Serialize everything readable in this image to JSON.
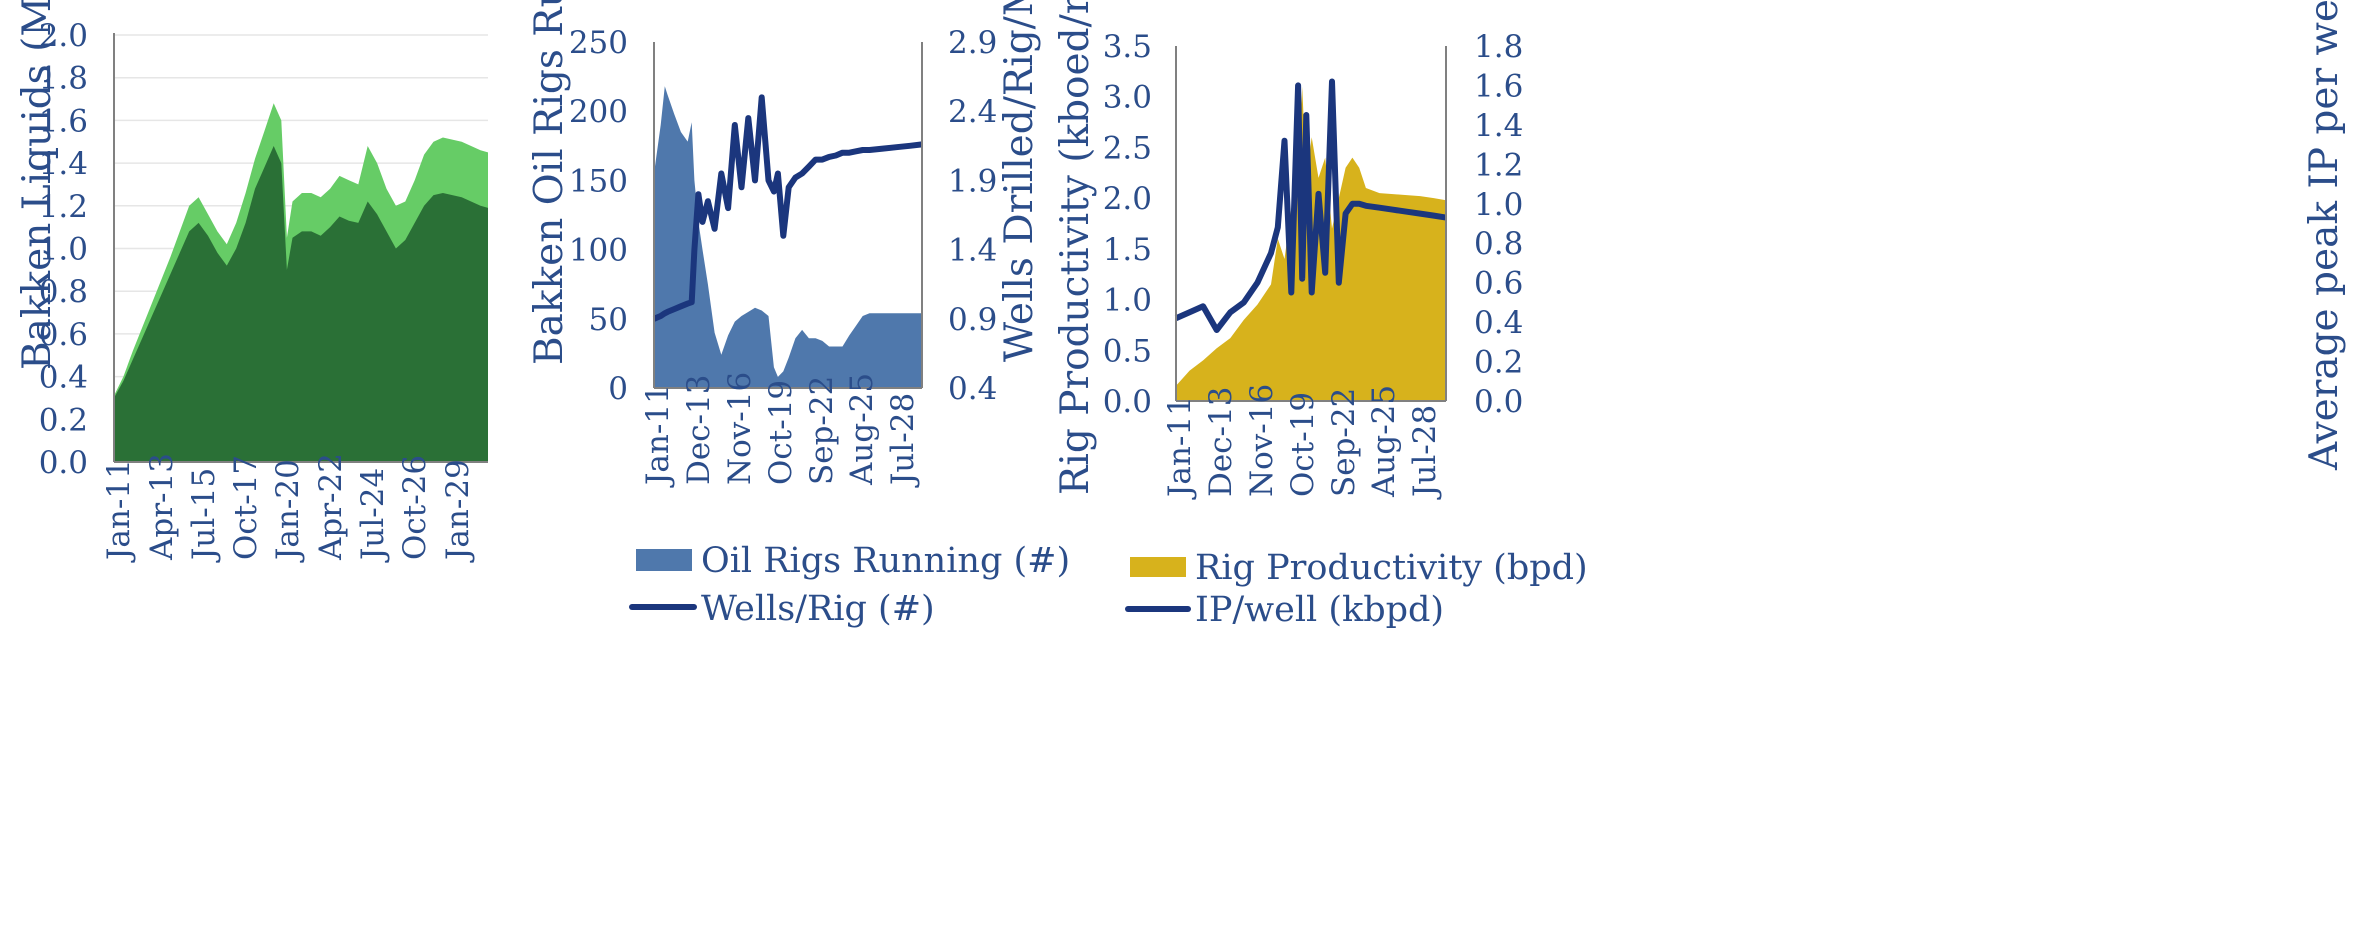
{
  "chart_data": [
    {
      "type": "area",
      "xlabel": "",
      "ylabel": "Bakken Liquids  (Mbpd)",
      "ylim": [
        0,
        2.0
      ],
      "y_ticks": [
        "0.0",
        "0.2",
        "0.4",
        "0.6",
        "0.8",
        "1.0",
        "1.2",
        "1.4",
        "1.6",
        "1.8",
        "2.0"
      ],
      "x_ticks": [
        "Jan-11",
        "Apr-13",
        "Jul-15",
        "Oct-17",
        "Jan-20",
        "Apr-22",
        "Jul-24",
        "Oct-26",
        "Jan-29"
      ],
      "grid": true,
      "colors": {
        "lower": "#2a7036",
        "upper": "#66cc66"
      },
      "x": [
        "2011.0",
        "2011.5",
        "2012.0",
        "2012.5",
        "2013.0",
        "2013.5",
        "2014.0",
        "2014.5",
        "2015.0",
        "2015.5",
        "2016.0",
        "2016.5",
        "2017.0",
        "2017.5",
        "2018.0",
        "2018.5",
        "2019.0",
        "2019.5",
        "2019.9",
        "2020.2",
        "2020.5",
        "2021.0",
        "2021.5",
        "2022.0",
        "2022.5",
        "2023.0",
        "2023.5",
        "2024.0",
        "2024.5",
        "2025.0",
        "2025.5",
        "2026.0",
        "2026.5",
        "2027.0",
        "2027.5",
        "2028.0",
        "2028.5",
        "2029.0",
        "2029.5",
        "2030.0",
        "2030.5",
        "2030.9"
      ],
      "series": [
        {
          "values": [
            0.3,
            0.38,
            0.48,
            0.58,
            0.68,
            0.78,
            0.88,
            0.98,
            1.08,
            1.12,
            1.06,
            0.98,
            0.92,
            1.0,
            1.12,
            1.28,
            1.38,
            1.48,
            1.4,
            0.9,
            1.05,
            1.08,
            1.08,
            1.06,
            1.1,
            1.15,
            1.13,
            1.12,
            1.22,
            1.16,
            1.08,
            1.0,
            1.04,
            1.12,
            1.2,
            1.25,
            1.26,
            1.25,
            1.24,
            1.22,
            1.2,
            1.19
          ]
        },
        {
          "values": [
            0.31,
            0.4,
            0.52,
            0.63,
            0.74,
            0.85,
            0.96,
            1.08,
            1.2,
            1.24,
            1.16,
            1.08,
            1.02,
            1.12,
            1.26,
            1.42,
            1.55,
            1.68,
            1.6,
            1.05,
            1.22,
            1.26,
            1.26,
            1.24,
            1.28,
            1.34,
            1.32,
            1.3,
            1.48,
            1.4,
            1.28,
            1.2,
            1.22,
            1.32,
            1.44,
            1.5,
            1.52,
            1.51,
            1.5,
            1.48,
            1.46,
            1.45
          ]
        }
      ]
    },
    {
      "type": "area",
      "xlabel": "",
      "ylabel": "Bakken Oil Rigs Running",
      "y2label": "Wells Drilled/Rig/Month",
      "ylim": [
        0,
        250
      ],
      "y2lim": [
        0.4,
        2.9
      ],
      "y_ticks": [
        "0",
        "50",
        "100",
        "150",
        "200",
        "250"
      ],
      "y2_ticks": [
        "0.4",
        "0.9",
        "1.4",
        "1.9",
        "2.4",
        "2.9"
      ],
      "x_ticks": [
        "Jan-11",
        "Dec-13",
        "Nov-16",
        "Oct-19",
        "Sep-22",
        "Aug-25",
        "Jul-28"
      ],
      "grid": false,
      "colors": {
        "area": "#4f78ac",
        "line": "#1b367d"
      },
      "x": [
        "2011.0",
        "2011.5",
        "2011.8",
        "2012.0",
        "2012.5",
        "2013.0",
        "2013.5",
        "2013.8",
        "2014.0",
        "2014.3",
        "2014.6",
        "2015.0",
        "2015.5",
        "2016.0",
        "2016.5",
        "2017.0",
        "2017.5",
        "2018.0",
        "2018.5",
        "2019.0",
        "2019.5",
        "2019.9",
        "2020.2",
        "2020.6",
        "2021.0",
        "2021.5",
        "2022.0",
        "2022.5",
        "2023.0",
        "2023.5",
        "2024.0",
        "2024.5",
        "2025.0",
        "2025.5",
        "2026.0",
        "2026.5",
        "2027.0",
        "2028.0",
        "2029.0",
        "2030.0",
        "2030.9"
      ],
      "series": [
        {
          "name": "Oil Rigs Running (#)",
          "values": [
            155,
            190,
            218,
            212,
            198,
            185,
            178,
            192,
            150,
            120,
            100,
            75,
            40,
            24,
            38,
            48,
            52,
            55,
            58,
            56,
            52,
            15,
            8,
            12,
            22,
            36,
            42,
            36,
            36,
            34,
            30,
            30,
            30,
            38,
            45,
            52,
            54,
            54,
            54,
            54,
            54
          ]
        },
        {
          "name": "Wells/Rig (#)",
          "values": [
            0.9,
            0.92,
            0.94,
            0.95,
            0.97,
            0.99,
            1.01,
            1.02,
            1.4,
            1.8,
            1.6,
            1.75,
            1.55,
            1.95,
            1.7,
            2.3,
            1.85,
            2.35,
            1.9,
            2.5,
            1.9,
            1.82,
            1.95,
            1.5,
            1.85,
            1.92,
            1.95,
            2.0,
            2.05,
            2.05,
            2.07,
            2.08,
            2.1,
            2.1,
            2.11,
            2.12,
            2.12,
            2.13,
            2.14,
            2.15,
            2.16
          ]
        }
      ]
    },
    {
      "type": "area",
      "xlabel": "",
      "ylabel": "Rig Productivity (kboed/rig/month)",
      "y2label": "Average peak IP per well (kbpd)",
      "ylim": [
        0,
        3.5
      ],
      "y2lim": [
        0,
        1.8
      ],
      "y_ticks": [
        "0.0",
        "0.5",
        "1.0",
        "1.5",
        "2.0",
        "2.5",
        "3.0",
        "3.5"
      ],
      "y2_ticks": [
        "0.0",
        "0.2",
        "0.4",
        "0.6",
        "0.8",
        "1.0",
        "1.2",
        "1.4",
        "1.6",
        "1.8"
      ],
      "x_ticks": [
        "Jan-11",
        "Dec-13",
        "Nov-16",
        "Oct-19",
        "Sep-22",
        "Aug-25",
        "Jul-28"
      ],
      "grid": false,
      "colors": {
        "area": "#d7b21c",
        "line": "#1b367d"
      },
      "x": [
        "2011.0",
        "2012.0",
        "2013.0",
        "2014.0",
        "2015.0",
        "2016.0",
        "2017.0",
        "2018.0",
        "2018.5",
        "2019.0",
        "2019.5",
        "2020.0",
        "2020.3",
        "2020.6",
        "2021.0",
        "2021.5",
        "2022.0",
        "2022.5",
        "2023.0",
        "2023.5",
        "2024.0",
        "2024.5",
        "2025.0",
        "2026.0",
        "2027.0",
        "2028.0",
        "2029.0",
        "2030.0",
        "2030.9"
      ],
      "series": [
        {
          "name": "Rig Productivity (bpd)",
          "values": [
            0.15,
            0.3,
            0.4,
            0.52,
            0.62,
            0.8,
            0.95,
            1.15,
            1.6,
            1.4,
            1.9,
            2.1,
            3.1,
            2.2,
            2.6,
            2.2,
            2.4,
            1.7,
            2.0,
            2.3,
            2.4,
            2.3,
            2.1,
            2.05,
            2.04,
            2.03,
            2.02,
            2.0,
            1.98
          ]
        },
        {
          "name": "IP/well (kbpd)",
          "values": [
            0.42,
            0.45,
            0.48,
            0.36,
            0.45,
            0.5,
            0.6,
            0.75,
            0.88,
            1.32,
            0.55,
            1.6,
            0.62,
            1.45,
            0.55,
            1.05,
            0.65,
            1.62,
            0.6,
            0.95,
            1.0,
            1.0,
            0.99,
            0.98,
            0.97,
            0.96,
            0.95,
            0.94,
            0.93
          ]
        }
      ]
    }
  ]
}
